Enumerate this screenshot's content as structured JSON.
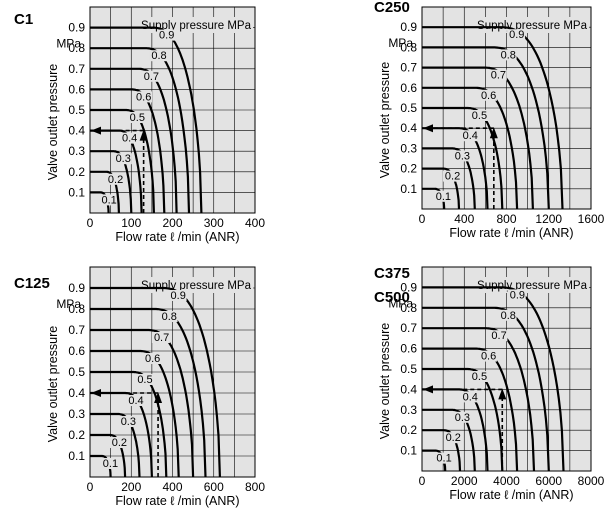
{
  "chart_data": [
    {
      "type": "line",
      "model": [
        "C1"
      ],
      "legend_title": "Supply pressure  MPa",
      "ylabel": "Valve outlet pressure",
      "yunit": "MPa",
      "xlabel": "Flow rate  ℓ /min (ANR)",
      "xlim": [
        0,
        400
      ],
      "ylim": [
        0,
        1.0
      ],
      "xticks": [
        0,
        100,
        200,
        300,
        400
      ],
      "yticks": [
        0.1,
        0.2,
        0.3,
        0.4,
        0.5,
        0.6,
        0.7,
        0.8,
        0.9
      ],
      "grid": true,
      "series": [
        {
          "name": "0.1",
          "y0": 0.1,
          "xmax": 45
        },
        {
          "name": "0.2",
          "y0": 0.2,
          "xmax": 70
        },
        {
          "name": "0.3",
          "y0": 0.3,
          "xmax": 100
        },
        {
          "name": "0.4",
          "y0": 0.4,
          "xmax": 125
        },
        {
          "name": "0.5",
          "y0": 0.5,
          "xmax": 155
        },
        {
          "name": "0.6",
          "y0": 0.6,
          "xmax": 180
        },
        {
          "name": "0.7",
          "y0": 0.7,
          "xmax": 210
        },
        {
          "name": "0.8",
          "y0": 0.8,
          "xmax": 240
        },
        {
          "name": "0.9",
          "y0": 0.9,
          "xmax": 270
        }
      ],
      "example": {
        "supply": 0.5,
        "outlet": 0.4,
        "flow": 130
      }
    },
    {
      "type": "line",
      "model": [
        "C250"
      ],
      "legend_title": "Supply pressure  MPa",
      "ylabel": "Valve outlet pressure",
      "yunit": "MPa",
      "xlabel": "Flow rate  ℓ /min (ANR)",
      "xlim": [
        0,
        1600
      ],
      "ylim": [
        0,
        1.0
      ],
      "xticks": [
        0,
        400,
        800,
        1200,
        1600
      ],
      "yticks": [
        0.1,
        0.2,
        0.3,
        0.4,
        0.5,
        0.6,
        0.7,
        0.8,
        0.9
      ],
      "grid": true,
      "series": [
        {
          "name": "0.1",
          "y0": 0.1,
          "xmax": 210
        },
        {
          "name": "0.2",
          "y0": 0.2,
          "xmax": 350
        },
        {
          "name": "0.3",
          "y0": 0.3,
          "xmax": 500
        },
        {
          "name": "0.4",
          "y0": 0.4,
          "xmax": 620
        },
        {
          "name": "0.5",
          "y0": 0.5,
          "xmax": 760
        },
        {
          "name": "0.6",
          "y0": 0.6,
          "xmax": 900
        },
        {
          "name": "0.7",
          "y0": 0.7,
          "xmax": 1050
        },
        {
          "name": "0.8",
          "y0": 0.8,
          "xmax": 1200
        },
        {
          "name": "0.9",
          "y0": 0.9,
          "xmax": 1330
        }
      ],
      "example": {
        "supply": 0.5,
        "outlet": 0.4,
        "flow": 680
      }
    },
    {
      "type": "line",
      "model": [
        "C125"
      ],
      "legend_title": "Supply pressure  MPa",
      "ylabel": "Valve outlet pressure",
      "yunit": "MPa",
      "xlabel": "Flow rate  ℓ /min (ANR)",
      "xlim": [
        0,
        800
      ],
      "ylim": [
        0,
        1.0
      ],
      "xticks": [
        0,
        200,
        400,
        600,
        800
      ],
      "yticks": [
        0.1,
        0.2,
        0.3,
        0.4,
        0.5,
        0.6,
        0.7,
        0.8,
        0.9
      ],
      "grid": true,
      "series": [
        {
          "name": "0.1",
          "y0": 0.1,
          "xmax": 100
        },
        {
          "name": "0.2",
          "y0": 0.2,
          "xmax": 170
        },
        {
          "name": "0.3",
          "y0": 0.3,
          "xmax": 240
        },
        {
          "name": "0.4",
          "y0": 0.4,
          "xmax": 300
        },
        {
          "name": "0.5",
          "y0": 0.5,
          "xmax": 370
        },
        {
          "name": "0.6",
          "y0": 0.6,
          "xmax": 430
        },
        {
          "name": "0.7",
          "y0": 0.7,
          "xmax": 500
        },
        {
          "name": "0.8",
          "y0": 0.8,
          "xmax": 560
        },
        {
          "name": "0.9",
          "y0": 0.9,
          "xmax": 630
        }
      ],
      "example": {
        "supply": 0.5,
        "outlet": 0.4,
        "flow": 330
      }
    },
    {
      "type": "line",
      "model": [
        "C375",
        "C500"
      ],
      "legend_title": "Supply pressure  MPa",
      "ylabel": "Valve outlet pressure",
      "yunit": "MPa",
      "xlabel": "Flow rate  ℓ /min (ANR)",
      "xlim": [
        0,
        8000
      ],
      "ylim": [
        0,
        1.0
      ],
      "xticks": [
        0,
        2000,
        4000,
        6000,
        8000
      ],
      "yticks": [
        0.1,
        0.2,
        0.3,
        0.4,
        0.5,
        0.6,
        0.7,
        0.8,
        0.9
      ],
      "grid": true,
      "series": [
        {
          "name": "0.1",
          "y0": 0.1,
          "xmax": 1100
        },
        {
          "name": "0.2",
          "y0": 0.2,
          "xmax": 1800
        },
        {
          "name": "0.3",
          "y0": 0.3,
          "xmax": 2500
        },
        {
          "name": "0.4",
          "y0": 0.4,
          "xmax": 3100
        },
        {
          "name": "0.5",
          "y0": 0.5,
          "xmax": 3800
        },
        {
          "name": "0.6",
          "y0": 0.6,
          "xmax": 4500
        },
        {
          "name": "0.7",
          "y0": 0.7,
          "xmax": 5300
        },
        {
          "name": "0.8",
          "y0": 0.8,
          "xmax": 6000
        },
        {
          "name": "0.9",
          "y0": 0.9,
          "xmax": 6700
        }
      ],
      "example": {
        "supply": 0.5,
        "outlet": 0.4,
        "flow": 3800
      }
    }
  ]
}
